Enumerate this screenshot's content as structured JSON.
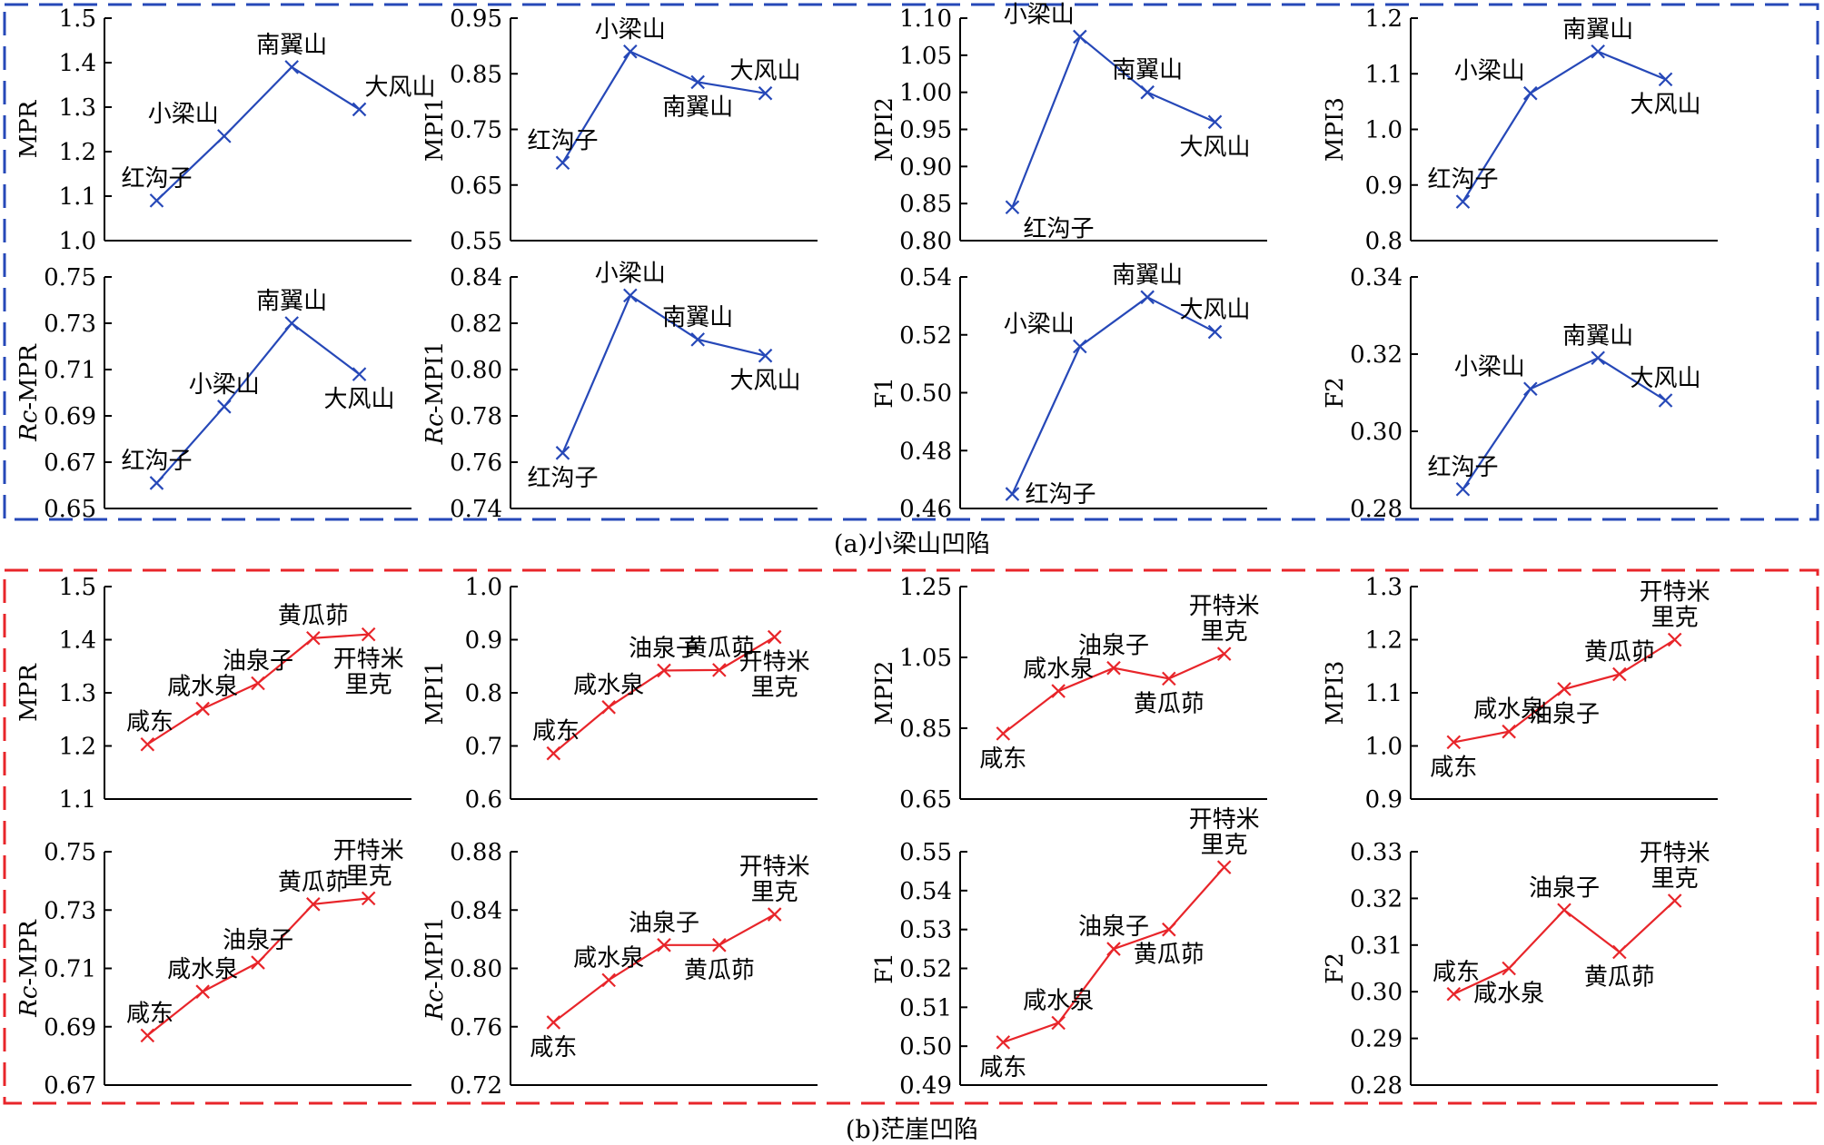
{
  "groups": [
    {
      "caption": "(a)小梁山凹陷",
      "color": "#2648b8"
    },
    {
      "caption": "(b)茫崖凹陷",
      "color": "#e8252a"
    }
  ],
  "chart_data": [
    {
      "type": "line",
      "group": 0,
      "ylabel": "MPR",
      "ylim": [
        1.0,
        1.5
      ],
      "yticks": [
        "1.0",
        "1.1",
        "1.2",
        "1.3",
        "1.4",
        "1.5"
      ],
      "points": [
        {
          "label": "红沟子",
          "value": 1.09,
          "pos": "tl"
        },
        {
          "label": "小梁山",
          "value": 1.235,
          "pos": "tl"
        },
        {
          "label": "南翼山",
          "value": 1.39,
          "pos": "t"
        },
        {
          "label": "大风山",
          "value": 1.295,
          "pos": "tr"
        }
      ]
    },
    {
      "type": "line",
      "group": 0,
      "ylabel": "MPI1",
      "ylim": [
        0.55,
        0.95
      ],
      "yticks": [
        "0.55",
        "0.65",
        "0.75",
        "0.85",
        "0.95"
      ],
      "points": [
        {
          "label": "红沟子",
          "value": 0.69,
          "pos": "tl"
        },
        {
          "label": "小梁山",
          "value": 0.89,
          "pos": "t"
        },
        {
          "label": "南翼山",
          "value": 0.835,
          "pos": "b"
        },
        {
          "label": "大风山",
          "value": 0.815,
          "pos": "t"
        }
      ]
    },
    {
      "type": "line",
      "group": 0,
      "ylabel": "MPI2",
      "ylim": [
        0.8,
        1.1
      ],
      "yticks": [
        "0.80",
        "0.85",
        "0.90",
        "0.95",
        "1.00",
        "1.05",
        "1.10"
      ],
      "points": [
        {
          "label": "红沟子",
          "value": 0.845,
          "pos": "br"
        },
        {
          "label": "小梁山",
          "value": 1.075,
          "pos": "tl"
        },
        {
          "label": "南翼山",
          "value": 1.0,
          "pos": "t"
        },
        {
          "label": "大风山",
          "value": 0.96,
          "pos": "b"
        }
      ]
    },
    {
      "type": "line",
      "group": 0,
      "ylabel": "MPI3",
      "ylim": [
        0.8,
        1.2
      ],
      "yticks": [
        "0.8",
        "0.9",
        "1.0",
        "1.1",
        "1.2"
      ],
      "points": [
        {
          "label": "红沟子",
          "value": 0.87,
          "pos": "tl"
        },
        {
          "label": "小梁山",
          "value": 1.065,
          "pos": "tl"
        },
        {
          "label": "南翼山",
          "value": 1.14,
          "pos": "t"
        },
        {
          "label": "大风山",
          "value": 1.09,
          "pos": "b"
        }
      ]
    },
    {
      "type": "line",
      "group": 0,
      "ylabel": "Rc-MPR",
      "italic_prefix": "Rc",
      "ylim": [
        0.65,
        0.75
      ],
      "yticks": [
        "0.65",
        "0.67",
        "0.69",
        "0.71",
        "0.73",
        "0.75"
      ],
      "points": [
        {
          "label": "红沟子",
          "value": 0.661,
          "pos": "tl"
        },
        {
          "label": "小梁山",
          "value": 0.694,
          "pos": "t"
        },
        {
          "label": "南翼山",
          "value": 0.73,
          "pos": "t"
        },
        {
          "label": "大风山",
          "value": 0.708,
          "pos": "b"
        }
      ]
    },
    {
      "type": "line",
      "group": 0,
      "ylabel": "Rc-MPI1",
      "italic_prefix": "Rc",
      "ylim": [
        0.74,
        0.84
      ],
      "yticks": [
        "0.74",
        "0.76",
        "0.78",
        "0.80",
        "0.82",
        "0.84"
      ],
      "points": [
        {
          "label": "红沟子",
          "value": 0.764,
          "pos": "b"
        },
        {
          "label": "小梁山",
          "value": 0.832,
          "pos": "t"
        },
        {
          "label": "南翼山",
          "value": 0.813,
          "pos": "t"
        },
        {
          "label": "大风山",
          "value": 0.806,
          "pos": "b"
        }
      ]
    },
    {
      "type": "line",
      "group": 0,
      "ylabel": "F1",
      "ylim": [
        0.46,
        0.54
      ],
      "yticks": [
        "0.46",
        "0.48",
        "0.50",
        "0.52",
        "0.54"
      ],
      "points": [
        {
          "label": "红沟子",
          "value": 0.465,
          "pos": "r"
        },
        {
          "label": "小梁山",
          "value": 0.516,
          "pos": "tl"
        },
        {
          "label": "南翼山",
          "value": 0.533,
          "pos": "t"
        },
        {
          "label": "大风山",
          "value": 0.521,
          "pos": "t"
        }
      ]
    },
    {
      "type": "line",
      "group": 0,
      "ylabel": "F2",
      "ylim": [
        0.28,
        0.34
      ],
      "yticks": [
        "0.28",
        "0.30",
        "0.32",
        "0.34"
      ],
      "points": [
        {
          "label": "红沟子",
          "value": 0.285,
          "pos": "tl"
        },
        {
          "label": "小梁山",
          "value": 0.311,
          "pos": "tl"
        },
        {
          "label": "南翼山",
          "value": 0.319,
          "pos": "t"
        },
        {
          "label": "大风山",
          "value": 0.308,
          "pos": "t"
        }
      ]
    },
    {
      "type": "line",
      "group": 1,
      "ylabel": "MPR",
      "ylim": [
        1.1,
        1.5
      ],
      "yticks": [
        "1.1",
        "1.2",
        "1.3",
        "1.4",
        "1.5"
      ],
      "points": [
        {
          "label": "咸东",
          "value": 1.203,
          "pos": "tl"
        },
        {
          "label": "咸水泉",
          "value": 1.27,
          "pos": "t"
        },
        {
          "label": "油泉子",
          "value": 1.318,
          "pos": "t"
        },
        {
          "label": "黄瓜茆",
          "value": 1.403,
          "pos": "t"
        },
        {
          "label": "开特米\n里克",
          "value": 1.41,
          "pos": "b"
        }
      ]
    },
    {
      "type": "line",
      "group": 1,
      "ylabel": "MPI1",
      "ylim": [
        0.6,
        1.0
      ],
      "yticks": [
        "0.6",
        "0.7",
        "0.8",
        "0.9",
        "1.0"
      ],
      "points": [
        {
          "label": "咸东",
          "value": 0.686,
          "pos": "tl"
        },
        {
          "label": "咸水泉",
          "value": 0.773,
          "pos": "t"
        },
        {
          "label": "油泉子",
          "value": 0.842,
          "pos": "t"
        },
        {
          "label": "黄瓜茆",
          "value": 0.843,
          "pos": "t"
        },
        {
          "label": "开特米\n里克",
          "value": 0.905,
          "pos": "b"
        }
      ]
    },
    {
      "type": "line",
      "group": 1,
      "ylabel": "MPI2",
      "ylim": [
        0.65,
        1.25
      ],
      "yticks": [
        "0.65",
        "0.85",
        "1.05",
        "1.25"
      ],
      "points": [
        {
          "label": "咸东",
          "value": 0.835,
          "pos": "b"
        },
        {
          "label": "咸水泉",
          "value": 0.955,
          "pos": "t"
        },
        {
          "label": "油泉子",
          "value": 1.02,
          "pos": "t"
        },
        {
          "label": "黄瓜茆",
          "value": 0.99,
          "pos": "b"
        },
        {
          "label": "开特米\n里克",
          "value": 1.06,
          "pos": "t"
        }
      ]
    },
    {
      "type": "line",
      "group": 1,
      "ylabel": "MPI3",
      "ylim": [
        0.9,
        1.3
      ],
      "yticks": [
        "0.9",
        "1.0",
        "1.1",
        "1.2",
        "1.3"
      ],
      "points": [
        {
          "label": "咸东",
          "value": 1.007,
          "pos": "b"
        },
        {
          "label": "咸水泉",
          "value": 1.027,
          "pos": "t"
        },
        {
          "label": "油泉子",
          "value": 1.107,
          "pos": "b"
        },
        {
          "label": "黄瓜茆",
          "value": 1.135,
          "pos": "t"
        },
        {
          "label": "开特米\n里克",
          "value": 1.2,
          "pos": "t"
        }
      ]
    },
    {
      "type": "line",
      "group": 1,
      "ylabel": "Rc-MPR",
      "italic_prefix": "Rc",
      "ylim": [
        0.67,
        0.75
      ],
      "yticks": [
        "0.67",
        "0.69",
        "0.71",
        "0.73",
        "0.75"
      ],
      "points": [
        {
          "label": "咸东",
          "value": 0.687,
          "pos": "tl"
        },
        {
          "label": "咸水泉",
          "value": 0.702,
          "pos": "t"
        },
        {
          "label": "油泉子",
          "value": 0.712,
          "pos": "t"
        },
        {
          "label": "黄瓜茆",
          "value": 0.732,
          "pos": "t"
        },
        {
          "label": "开特米\n里克",
          "value": 0.734,
          "pos": "t"
        }
      ]
    },
    {
      "type": "line",
      "group": 1,
      "ylabel": "Rc-MPI1",
      "italic_prefix": "Rc",
      "ylim": [
        0.72,
        0.88
      ],
      "yticks": [
        "0.72",
        "0.76",
        "0.80",
        "0.84",
        "0.88"
      ],
      "points": [
        {
          "label": "咸东",
          "value": 0.763,
          "pos": "b"
        },
        {
          "label": "咸水泉",
          "value": 0.792,
          "pos": "t"
        },
        {
          "label": "油泉子",
          "value": 0.816,
          "pos": "t"
        },
        {
          "label": "黄瓜茆",
          "value": 0.816,
          "pos": "b"
        },
        {
          "label": "开特米\n里克",
          "value": 0.837,
          "pos": "t"
        }
      ]
    },
    {
      "type": "line",
      "group": 1,
      "ylabel": "F1",
      "ylim": [
        0.49,
        0.55
      ],
      "yticks": [
        "0.49",
        "0.50",
        "0.51",
        "0.52",
        "0.53",
        "0.54",
        "0.55"
      ],
      "points": [
        {
          "label": "咸东",
          "value": 0.501,
          "pos": "b"
        },
        {
          "label": "咸水泉",
          "value": 0.506,
          "pos": "t"
        },
        {
          "label": "油泉子",
          "value": 0.525,
          "pos": "t"
        },
        {
          "label": "黄瓜茆",
          "value": 0.53,
          "pos": "b"
        },
        {
          "label": "开特米\n里克",
          "value": 0.546,
          "pos": "t"
        }
      ]
    },
    {
      "type": "line",
      "group": 1,
      "ylabel": "F2",
      "ylim": [
        0.28,
        0.33
      ],
      "yticks": [
        "0.28",
        "0.29",
        "0.30",
        "0.31",
        "0.32",
        "0.33"
      ],
      "points": [
        {
          "label": "咸东",
          "value": 0.2995,
          "pos": "tl"
        },
        {
          "label": "咸水泉",
          "value": 0.305,
          "pos": "b"
        },
        {
          "label": "油泉子",
          "value": 0.3175,
          "pos": "t"
        },
        {
          "label": "黄瓜茆",
          "value": 0.3085,
          "pos": "b"
        },
        {
          "label": "开特米\n里克",
          "value": 0.3195,
          "pos": "t"
        }
      ]
    }
  ]
}
